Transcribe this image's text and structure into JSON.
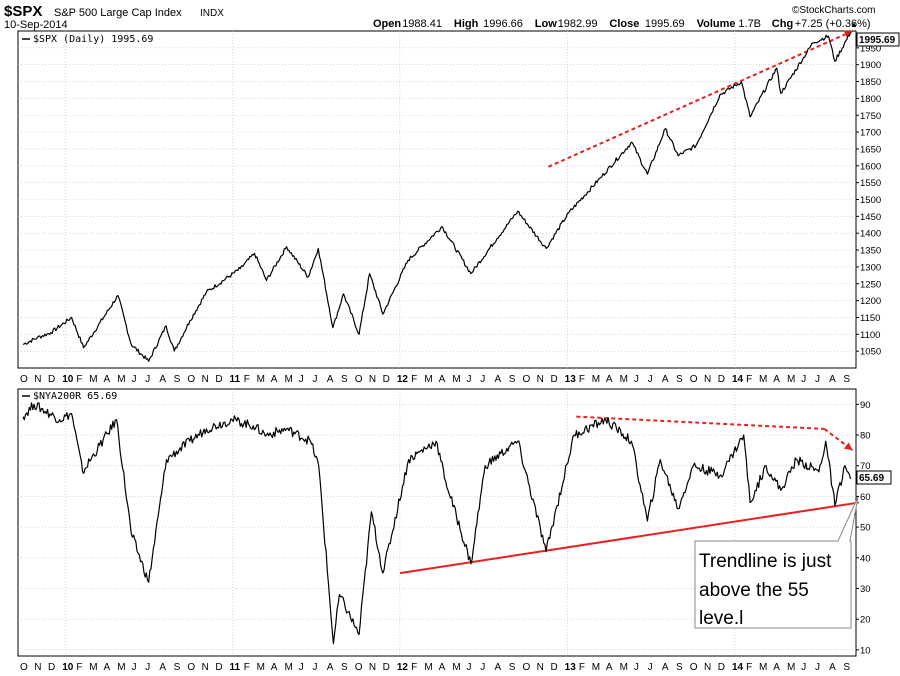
{
  "header": {
    "symbol": "$SPX",
    "name": "S&P 500 Large Cap Index",
    "exchange": "INDX",
    "date": "10-Sep-2014",
    "watermark": "©StockCharts.com",
    "stats": [
      {
        "label": "Open",
        "value": "1988.41"
      },
      {
        "label": "High",
        "value": "1996.66"
      },
      {
        "label": "Low",
        "value": "1982.99"
      },
      {
        "label": "Close",
        "value": "1995.69"
      },
      {
        "label": "Volume",
        "value": "1.7B"
      },
      {
        "label": "Chg",
        "value": "+7.25 (+0.36%)"
      }
    ],
    "up_arrow": "▲"
  },
  "colors": {
    "price_line": "#000000",
    "trend_red": "#e8201f",
    "annotation_blue": "#1a1adc",
    "grid": "#bdbdbd",
    "axis_tick_text": "#000000"
  },
  "chart_data": [
    {
      "type": "line",
      "panel": "top",
      "legend": "$SPX (Daily) 1995.69",
      "last_value_label": "1995.69",
      "ylim": [
        1000,
        2000
      ],
      "y_ticks": [
        "1050",
        "1100",
        "1150",
        "1200",
        "1250",
        "1300",
        "1350",
        "1400",
        "1450",
        "1500",
        "1550",
        "1600",
        "1650",
        "1700",
        "1750",
        "1800",
        "1850",
        "1900",
        "1950"
      ],
      "x": [
        "2009-10-01",
        "2009-11-01",
        "2009-12-01",
        "2010-01-15",
        "2010-02-10",
        "2010-04-26",
        "2010-05-25",
        "2010-07-02",
        "2010-08-09",
        "2010-08-27",
        "2010-09-30",
        "2010-11-05",
        "2011-01-18",
        "2011-02-18",
        "2011-03-16",
        "2011-04-29",
        "2011-06-15",
        "2011-07-07",
        "2011-08-08",
        "2011-08-31",
        "2011-10-04",
        "2011-10-27",
        "2011-11-25",
        "2012-01-19",
        "2012-04-02",
        "2012-06-04",
        "2012-07-31",
        "2012-09-14",
        "2012-11-15",
        "2013-01-03",
        "2013-03-14",
        "2013-05-21",
        "2013-06-24",
        "2013-08-02",
        "2013-08-30",
        "2013-10-08",
        "2013-11-29",
        "2014-01-15",
        "2014-02-03",
        "2014-04-02",
        "2014-04-11",
        "2014-06-20",
        "2014-07-24",
        "2014-08-07",
        "2014-09-10"
      ],
      "y": [
        1070,
        1090,
        1105,
        1150,
        1060,
        1215,
        1070,
        1020,
        1125,
        1050,
        1140,
        1225,
        1295,
        1340,
        1260,
        1360,
        1270,
        1355,
        1120,
        1220,
        1100,
        1280,
        1160,
        1320,
        1420,
        1280,
        1385,
        1465,
        1355,
        1460,
        1565,
        1670,
        1575,
        1710,
        1630,
        1660,
        1810,
        1850,
        1745,
        1890,
        1815,
        1965,
        1985,
        1910,
        1995.69
      ],
      "series_name": "$SPX (Daily)",
      "trendline": {
        "style": "dashed",
        "color": "red",
        "from": {
          "x": "2012-11-20",
          "y": 1597
        },
        "to": {
          "x": "2014-09-15",
          "y": 2000
        }
      }
    },
    {
      "type": "line",
      "panel": "bottom",
      "legend": "$NYA200R 65.69",
      "last_value_label": "65.69",
      "ylim": [
        8,
        95
      ],
      "y_ticks": [
        "10",
        "20",
        "30",
        "40",
        "50",
        "60",
        "70",
        "80",
        "90"
      ],
      "x": [
        "2009-10-01",
        "2009-10-25",
        "2009-12-20",
        "2010-01-15",
        "2010-02-08",
        "2010-04-23",
        "2010-05-25",
        "2010-07-02",
        "2010-08-10",
        "2010-09-30",
        "2010-11-05",
        "2010-12-31",
        "2011-02-15",
        "2011-03-16",
        "2011-04-29",
        "2011-06-20",
        "2011-07-08",
        "2011-08-09",
        "2011-08-22",
        "2011-10-04",
        "2011-10-31",
        "2011-11-25",
        "2012-01-20",
        "2012-03-20",
        "2012-04-10",
        "2012-06-04",
        "2012-07-05",
        "2012-09-14",
        "2012-11-15",
        "2013-01-15",
        "2013-03-25",
        "2013-05-20",
        "2013-06-24",
        "2013-07-22",
        "2013-08-30",
        "2013-10-02",
        "2013-12-01",
        "2014-01-20",
        "2014-02-03",
        "2014-03-10",
        "2014-04-11",
        "2014-05-15",
        "2014-07-03",
        "2014-07-18",
        "2014-08-07",
        "2014-08-29",
        "2014-09-10"
      ],
      "y": [
        86,
        90,
        85,
        87,
        68,
        85,
        48,
        32,
        72,
        78,
        82,
        85,
        83,
        80,
        82,
        78,
        70,
        12,
        28,
        15,
        55,
        35,
        72,
        78,
        65,
        38,
        70,
        78,
        42,
        80,
        85,
        78,
        52,
        72,
        56,
        70,
        67,
        80,
        58,
        70,
        62,
        72,
        68,
        78,
        57,
        70,
        65.69
      ],
      "series_name": "$NYA200R",
      "trendline_solid": {
        "style": "solid",
        "color": "red",
        "from": {
          "x": "2012-01-01",
          "y": 35
        },
        "to": {
          "x": "2014-09-28",
          "y": 58
        }
      },
      "trendline_dashed": {
        "style": "dashed",
        "color": "red",
        "from": {
          "x": "2013-01-20",
          "y": 86
        },
        "to": {
          "x": "2014-07-15",
          "y": 82
        }
      },
      "arrow_dashed": {
        "style": "dashed",
        "color": "red",
        "from": {
          "x": "2014-07-15",
          "y": 82
        },
        "to": {
          "x": "2014-09-15",
          "y": 75
        }
      }
    }
  ],
  "x_axis_labels": [
    "O",
    "N",
    "D",
    "10",
    "F",
    "M",
    "A",
    "M",
    "J",
    "J",
    "A",
    "S",
    "O",
    "N",
    "D",
    "11",
    "F",
    "M",
    "A",
    "M",
    "J",
    "J",
    "A",
    "S",
    "O",
    "N",
    "D",
    "12",
    "F",
    "M",
    "A",
    "M",
    "J",
    "J",
    "A",
    "S",
    "O",
    "N",
    "D",
    "13",
    "F",
    "M",
    "A",
    "M",
    "J",
    "J",
    "A",
    "S",
    "O",
    "N",
    "D",
    "14",
    "F",
    "M",
    "A",
    "M",
    "J",
    "J",
    "A",
    "S"
  ],
  "annotation": {
    "lines": [
      "Trendline is just",
      "above  the 55",
      "leve.l"
    ]
  }
}
